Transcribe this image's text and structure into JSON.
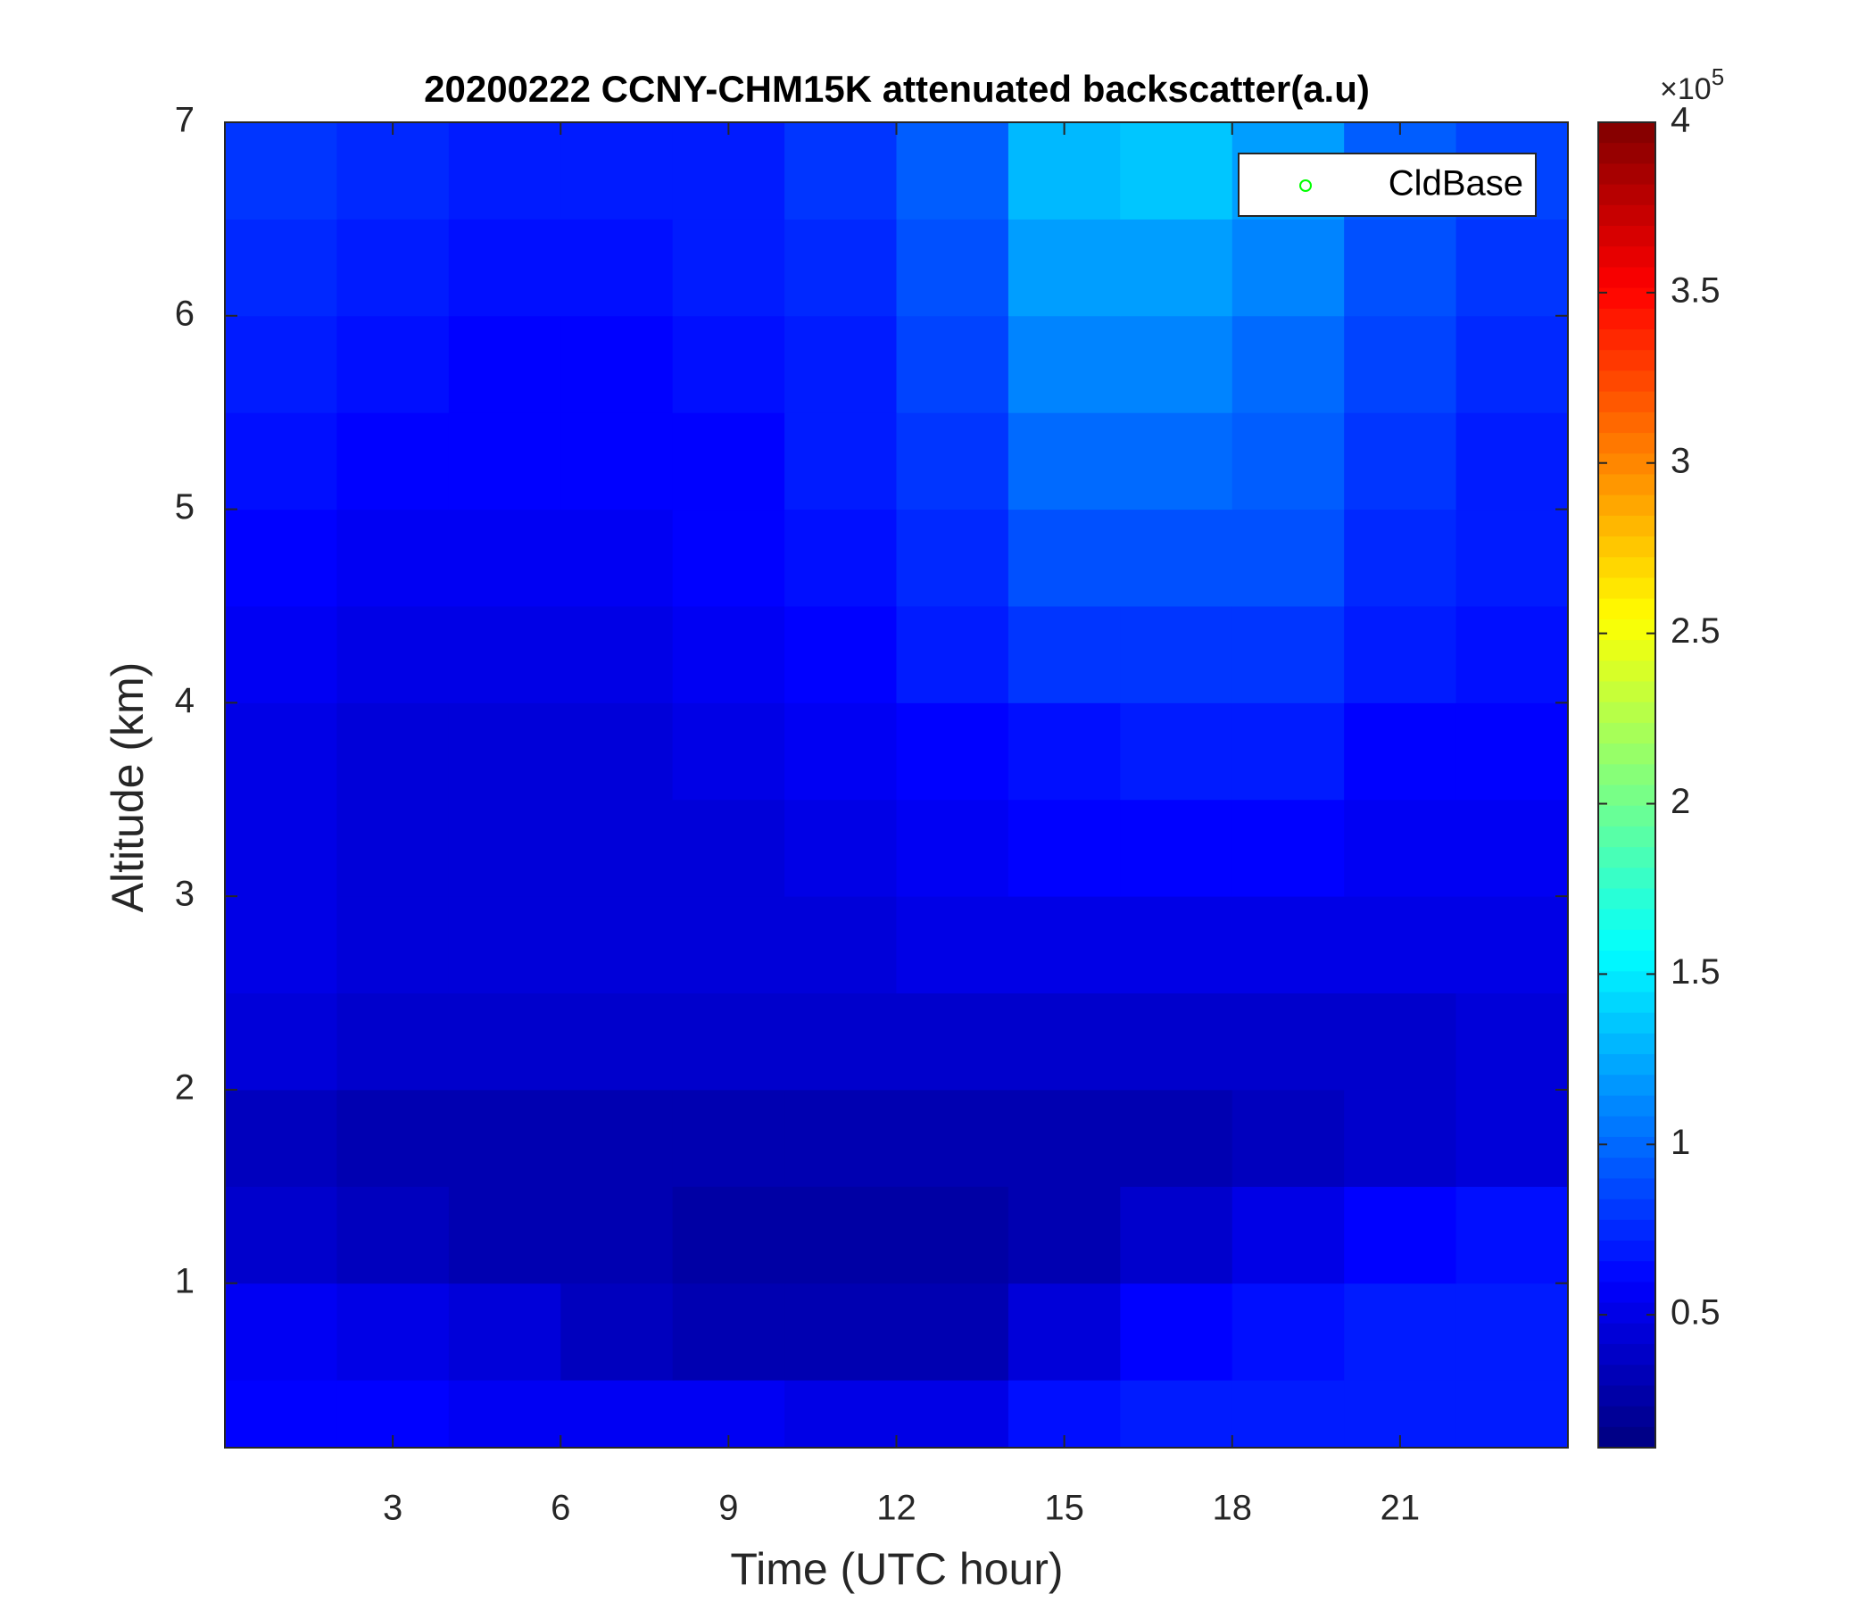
{
  "chart_data": {
    "type": "heatmap",
    "title": "20200222 CCNY-CHM15K attenuated backscatter(a.u)",
    "xlabel": "Time (UTC hour)",
    "ylabel": "Altitude (km)",
    "xlim": [
      0,
      24
    ],
    "ylim": [
      0.15,
      7
    ],
    "xticks": [
      3,
      6,
      9,
      12,
      15,
      18,
      21
    ],
    "yticks": [
      1,
      2,
      3,
      4,
      5,
      6,
      7
    ],
    "xbins": [
      0,
      2,
      4,
      6,
      8,
      10,
      12,
      14,
      16,
      18,
      20,
      22,
      24
    ],
    "ybins": [
      0.15,
      0.5,
      1,
      1.5,
      2,
      2.5,
      3,
      3.5,
      4,
      4.5,
      5,
      5.5,
      6,
      6.5,
      7
    ],
    "z": [
      [
        0.6,
        0.6,
        0.55,
        0.55,
        0.55,
        0.5,
        0.5,
        0.65,
        0.7,
        0.7,
        0.7,
        0.7
      ],
      [
        0.55,
        0.5,
        0.45,
        0.35,
        0.3,
        0.3,
        0.3,
        0.45,
        0.6,
        0.65,
        0.7,
        0.7
      ],
      [
        0.4,
        0.35,
        0.3,
        0.3,
        0.25,
        0.25,
        0.25,
        0.3,
        0.4,
        0.5,
        0.6,
        0.65
      ],
      [
        0.35,
        0.3,
        0.3,
        0.3,
        0.3,
        0.3,
        0.3,
        0.3,
        0.3,
        0.35,
        0.4,
        0.45
      ],
      [
        0.45,
        0.4,
        0.4,
        0.4,
        0.4,
        0.4,
        0.4,
        0.4,
        0.4,
        0.4,
        0.4,
        0.45
      ],
      [
        0.5,
        0.45,
        0.45,
        0.45,
        0.45,
        0.45,
        0.5,
        0.5,
        0.5,
        0.5,
        0.5,
        0.5
      ],
      [
        0.5,
        0.45,
        0.45,
        0.45,
        0.45,
        0.5,
        0.55,
        0.6,
        0.6,
        0.6,
        0.55,
        0.55
      ],
      [
        0.5,
        0.45,
        0.45,
        0.45,
        0.5,
        0.55,
        0.6,
        0.65,
        0.7,
        0.7,
        0.6,
        0.6
      ],
      [
        0.55,
        0.5,
        0.5,
        0.5,
        0.55,
        0.6,
        0.7,
        0.8,
        0.8,
        0.8,
        0.7,
        0.65
      ],
      [
        0.6,
        0.55,
        0.55,
        0.55,
        0.6,
        0.65,
        0.75,
        0.9,
        0.9,
        0.9,
        0.75,
        0.7
      ],
      [
        0.65,
        0.6,
        0.6,
        0.6,
        0.6,
        0.7,
        0.8,
        1.0,
        1.0,
        0.95,
        0.8,
        0.7
      ],
      [
        0.7,
        0.65,
        0.6,
        0.6,
        0.65,
        0.7,
        0.85,
        1.1,
        1.1,
        1.0,
        0.85,
        0.75
      ],
      [
        0.75,
        0.7,
        0.65,
        0.65,
        0.7,
        0.75,
        0.9,
        1.2,
        1.2,
        1.1,
        0.9,
        0.8
      ],
      [
        0.8,
        0.75,
        0.7,
        0.7,
        0.7,
        0.8,
        0.95,
        1.3,
        1.35,
        1.2,
        0.95,
        0.85
      ]
    ],
    "colormap": "jet",
    "clim": [
      0.11,
      4
    ],
    "cticks": [
      0.5,
      1,
      1.5,
      2,
      2.5,
      3,
      3.5,
      4
    ],
    "cmultiplier": "×10",
    "cexponent": "5",
    "series": [
      {
        "name": "CldBase",
        "color": "#00ff00"
      }
    ],
    "legend": "upper right"
  }
}
